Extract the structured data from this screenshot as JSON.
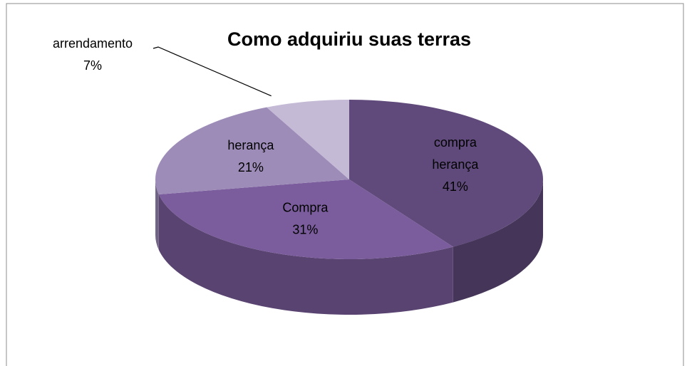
{
  "chart_data": {
    "type": "pie",
    "title": "Como adquiriu suas terras",
    "categories": [
      "compra herança",
      "Compra",
      "herança",
      "arrendamento"
    ],
    "values": [
      41,
      31,
      21,
      7
    ],
    "value_labels": [
      "41%",
      "31%",
      "21%",
      "7%"
    ],
    "colors": [
      "#604a7b",
      "#7b5d9d",
      "#9d8cb8",
      "#c5bad6"
    ]
  }
}
